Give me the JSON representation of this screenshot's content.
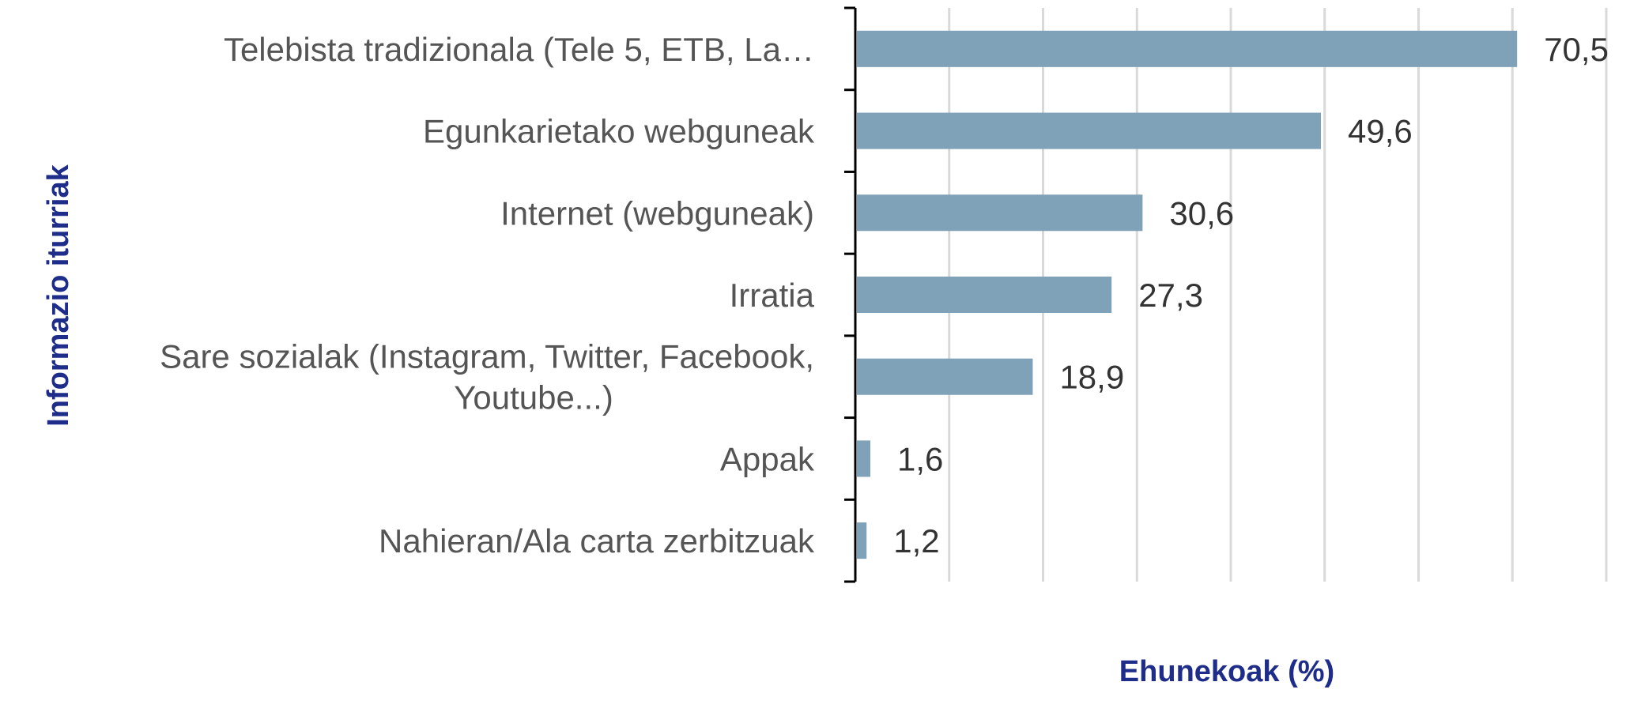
{
  "chart_data": {
    "type": "bar",
    "orientation": "horizontal",
    "categories": [
      "Telebista tradizionala (Tele 5, ETB, La…",
      "Egunkarietako webguneak",
      "Internet (webguneak)",
      "Irratia",
      "Sare sozialak (Instagram, Twitter, Facebook,\nYoutube...)",
      "Appak",
      "Nahieran/Ala carta zerbitzuak"
    ],
    "values": [
      70.5,
      49.6,
      30.6,
      27.3,
      18.9,
      1.6,
      1.2
    ],
    "value_labels": [
      "70,5",
      "49,6",
      "30,6",
      "27,3",
      "18,9",
      "1,6",
      "1,2"
    ],
    "xlabel": "Ehunekoak (%)",
    "ylabel": "Informazio iturriak",
    "xlim": [
      0,
      80
    ],
    "grid": "vertical",
    "legend": "none",
    "colors": {
      "bar": "#7fa2b8",
      "gridline": "#d9d9d9",
      "axis": "#000000",
      "axis_title": "#1f2d8a",
      "category_text": "#555555",
      "value_text": "#333333"
    }
  }
}
